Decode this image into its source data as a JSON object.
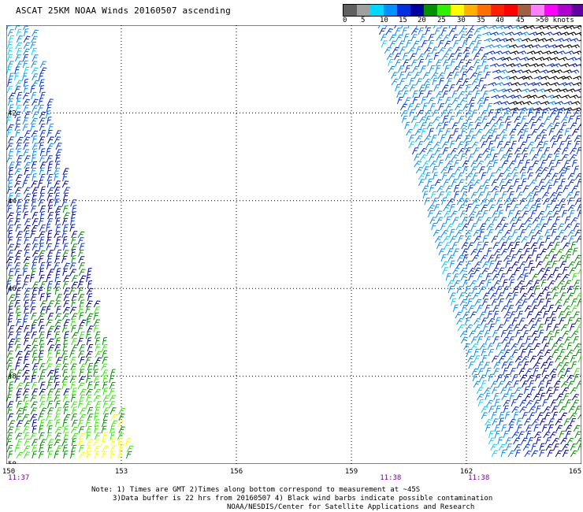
{
  "title": "ASCAT 25KM NOAA Winds 20160507 ascending",
  "legend": {
    "colors": [
      "#606060",
      "#a0a0a0",
      "#00d8ff",
      "#0090ff",
      "#0030e0",
      "#0000a0",
      "#009000",
      "#30f000",
      "#ffff00",
      "#ffb000",
      "#ff7000",
      "#ff2000",
      "#ff0000",
      "#a06040",
      "#ff80ff",
      "#ff00ff",
      "#b000d0",
      "#6000a0"
    ],
    "labels": [
      "0",
      "5",
      "10",
      "15",
      "20",
      "25",
      "30",
      "35",
      "40",
      "45",
      ">50 knots"
    ]
  },
  "map": {
    "lon_range": [
      150,
      165
    ],
    "lat_range": [
      -40,
      -50
    ],
    "lon_labels": [
      "150",
      "153",
      "156",
      "159",
      "162",
      "165"
    ],
    "lat_labels": [
      "42",
      "44",
      "46",
      "48",
      "50"
    ],
    "time_labels": [
      {
        "text": "11:37",
        "lon": 150.2
      },
      {
        "text": "11:38",
        "lon": 159.9
      },
      {
        "text": "11:38",
        "lon": 162.2
      }
    ]
  },
  "notes": {
    "line1": "Note: 1) Times are GMT 2)Times along bottom correspond to measurement at ~45S",
    "line2": "3)Data buffer is 22 hrs from 20160507 4) Black wind barbs indicate possible contamination",
    "line3": "NOAA/NESDIS/Center for Satellite Applications and Research"
  }
}
